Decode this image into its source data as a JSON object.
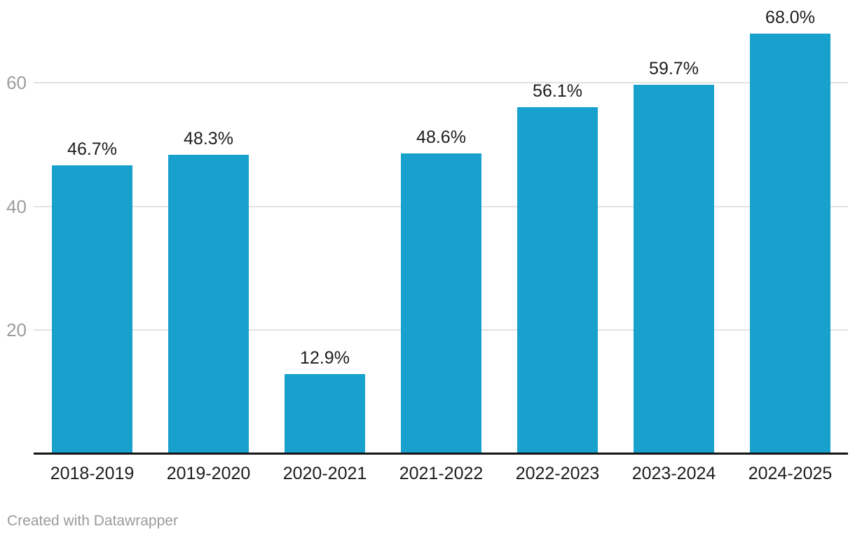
{
  "chart_data": {
    "type": "bar",
    "categories": [
      "2018-2019",
      "2019-2020",
      "2020-2021",
      "2021-2022",
      "2022-2023",
      "2023-2024",
      "2024-2025"
    ],
    "values": [
      46.7,
      48.3,
      12.9,
      48.6,
      56.1,
      59.7,
      68.0
    ],
    "value_labels": [
      "46.7%",
      "48.3%",
      "12.9%",
      "48.6%",
      "56.1%",
      "59.7%",
      "68.0%"
    ],
    "title": "",
    "xlabel": "",
    "ylabel": "",
    "ylim": [
      0,
      70
    ],
    "yticks": [
      20,
      40,
      60
    ],
    "ytick_labels": [
      "20",
      "40",
      "60"
    ],
    "grid": true,
    "legend": false,
    "colors": {
      "bar": "#18a1cd",
      "gridline": "#e2e2e2",
      "axis_line": "#141414",
      "y_tick_text": "#9d9d9d",
      "label_text": "#1d1d1d",
      "credit_text": "#9b9b9b",
      "background": "#ffffff"
    }
  },
  "footer": {
    "credit": "Created with Datawrapper"
  }
}
